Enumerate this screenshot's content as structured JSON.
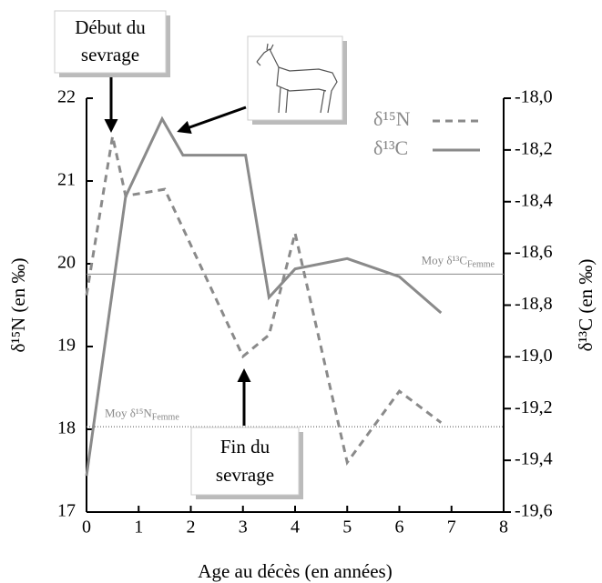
{
  "chart_data": {
    "type": "line",
    "x_label": "Age au décès (en années)",
    "y_label": "δ¹⁵N (en ‰)",
    "y2_label": "δ¹³C (en ‰)",
    "xlim": [
      0,
      8
    ],
    "xticks": [
      0,
      1,
      2,
      3,
      4,
      5,
      6,
      7,
      8
    ],
    "ylim": [
      17,
      22
    ],
    "yticks": [
      17,
      18,
      19,
      20,
      21,
      22
    ],
    "y2lim": [
      -19.6,
      -18.0
    ],
    "y2ticks": [
      {
        "value": -19.6,
        "label": "-19,6"
      },
      {
        "value": -19.4,
        "label": "-19,4"
      },
      {
        "value": -19.2,
        "label": "-19,2"
      },
      {
        "value": -19.0,
        "label": "-19,0"
      },
      {
        "value": -18.8,
        "label": "-18,8"
      },
      {
        "value": -18.6,
        "label": "-18,6"
      },
      {
        "value": -18.4,
        "label": "-18,4"
      },
      {
        "value": -18.2,
        "label": "-18,2"
      },
      {
        "value": -18.0,
        "label": "-18,0"
      }
    ],
    "series": [
      {
        "name": "δ¹⁵N",
        "color": "#8a8a8a",
        "dash": "8,6",
        "axis": "y",
        "x": [
          0,
          0.5,
          0.75,
          1.5,
          3,
          3.5,
          4,
          5,
          6,
          6.8
        ],
        "values": [
          19.62,
          21.54,
          20.82,
          20.9,
          18.88,
          19.14,
          20.37,
          17.6,
          18.46,
          18.08
        ]
      },
      {
        "name": "δ¹³C",
        "color": "#8a8a8a",
        "axis": "y2",
        "x": [
          0,
          0.75,
          1.45,
          1.85,
          3.05,
          3.5,
          4,
          5,
          6,
          6.8
        ],
        "values": [
          -19.46,
          -18.38,
          -18.08,
          -18.22,
          -18.22,
          -18.77,
          -18.66,
          -18.62,
          -18.69,
          -18.83
        ]
      }
    ],
    "reference_lines": [
      {
        "axis": "y2",
        "value": -18.68,
        "label": "Moy δ¹³C",
        "sub": "Femme",
        "style": "solid"
      },
      {
        "axis": "y",
        "value": 18.03,
        "label": "Moy δ¹⁵N",
        "sub": "Femme",
        "style": "dotted"
      }
    ],
    "annotations": [
      {
        "lines": [
          "Début du",
          "sevrage"
        ]
      },
      {
        "lines": [
          "Fin du",
          "sevrage"
        ]
      }
    ]
  }
}
